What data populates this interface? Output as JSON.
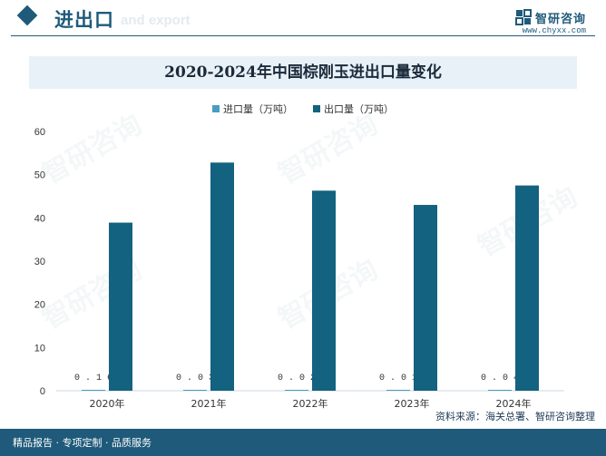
{
  "header": {
    "title": "进出口",
    "subtitle": "and export",
    "brand_name": "智研咨询",
    "brand_url": "www.chyxx.com"
  },
  "footer": {
    "left_text": "精品报告 · 专项定制 · 品质服务",
    "source": "资料来源：海关总署、智研咨询整理"
  },
  "colors": {
    "import": "#4a9cc2",
    "export": "#13627f",
    "brand": "#1f5a7a"
  },
  "chart_data": {
    "type": "bar",
    "title": "2020-2024年中国棕刚玉进出口量变化",
    "categories": [
      "2020年",
      "2021年",
      "2022年",
      "2023年",
      "2024年"
    ],
    "series": [
      {
        "name": "进口量（万吨）",
        "values": [
          0.16,
          0.03,
          0.02,
          0.01,
          0.04
        ],
        "labels": [
          "0.16",
          "0.03",
          "0.02",
          "0.01",
          "0.04"
        ]
      },
      {
        "name": "出口量（万吨）",
        "values": [
          38.9,
          52.8,
          46.3,
          43.0,
          47.5
        ]
      }
    ],
    "ylim": [
      0,
      60
    ],
    "yticks": [
      0,
      10,
      20,
      30,
      40,
      50,
      60
    ],
    "legend": "top-center",
    "grid": false
  }
}
